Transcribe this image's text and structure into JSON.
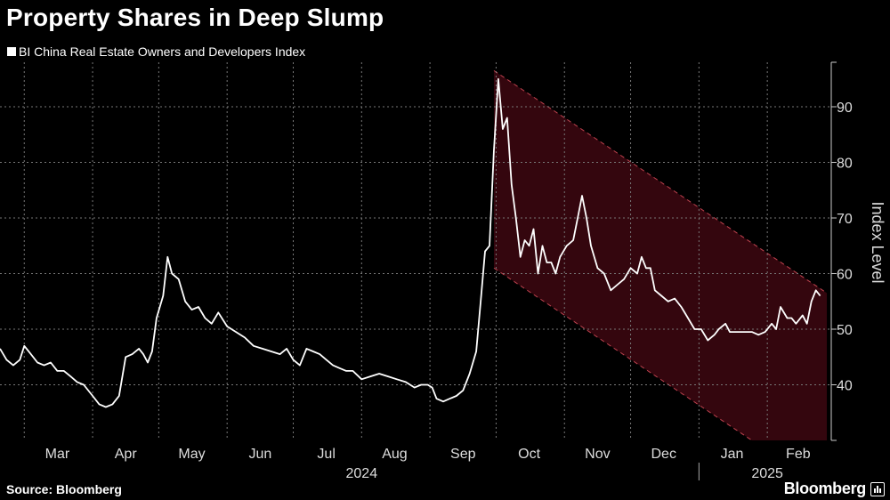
{
  "title": "Property Shares in Deep Slump",
  "legend": "BI China Real Estate Owners and Developers Index",
  "source": "Source: Bloomberg",
  "brand": "Bloomberg",
  "colors": {
    "background": "#000000",
    "line": "#ffffff",
    "channel_fill": "#3a0710",
    "channel_border": "#c0434f",
    "grid": "#777777"
  },
  "chart_data": {
    "type": "line",
    "title": "Property Shares in Deep Slump",
    "ylabel": "Index Level",
    "ylim": [
      30,
      98
    ],
    "yticks": [
      40,
      50,
      60,
      70,
      80,
      90
    ],
    "xlim": [
      "2024-02-19",
      "2025-03-02"
    ],
    "x_months": [
      {
        "label": "Mar",
        "date": "2024-03-01"
      },
      {
        "label": "Apr",
        "date": "2024-04-01"
      },
      {
        "label": "May",
        "date": "2024-05-01"
      },
      {
        "label": "Jun",
        "date": "2024-06-01"
      },
      {
        "label": "Jul",
        "date": "2024-07-01"
      },
      {
        "label": "Aug",
        "date": "2024-08-01"
      },
      {
        "label": "Sep",
        "date": "2024-09-01"
      },
      {
        "label": "Oct",
        "date": "2024-10-01"
      },
      {
        "label": "Nov",
        "date": "2024-11-01"
      },
      {
        "label": "Dec",
        "date": "2024-12-01"
      },
      {
        "label": "Jan",
        "date": "2025-01-01"
      },
      {
        "label": "Feb",
        "date": "2025-02-01"
      }
    ],
    "x_years": [
      {
        "label": "2024",
        "date": "2024-08-01"
      },
      {
        "label": "2025",
        "date": "2025-02-01"
      }
    ],
    "grid": true,
    "legend_position": "top-left",
    "series": [
      {
        "name": "BI China Real Estate Owners and Developers Index",
        "points": [
          [
            "2024-02-19",
            46.5
          ],
          [
            "2024-02-22",
            44.5
          ],
          [
            "2024-02-25",
            43.5
          ],
          [
            "2024-02-28",
            44.5
          ],
          [
            "2024-03-01",
            47.0
          ],
          [
            "2024-03-04",
            45.5
          ],
          [
            "2024-03-07",
            44.0
          ],
          [
            "2024-03-10",
            43.5
          ],
          [
            "2024-03-13",
            44.0
          ],
          [
            "2024-03-16",
            42.5
          ],
          [
            "2024-03-19",
            42.5
          ],
          [
            "2024-03-22",
            41.5
          ],
          [
            "2024-03-25",
            40.5
          ],
          [
            "2024-03-28",
            40.0
          ],
          [
            "2024-04-01",
            38.0
          ],
          [
            "2024-04-04",
            36.5
          ],
          [
            "2024-04-07",
            36.0
          ],
          [
            "2024-04-10",
            36.5
          ],
          [
            "2024-04-13",
            38.0
          ],
          [
            "2024-04-16",
            45.0
          ],
          [
            "2024-04-19",
            45.5
          ],
          [
            "2024-04-22",
            46.5
          ],
          [
            "2024-04-24",
            45.5
          ],
          [
            "2024-04-26",
            44.0
          ],
          [
            "2024-04-28",
            46.0
          ],
          [
            "2024-04-30",
            52.0
          ],
          [
            "2024-05-03",
            56.0
          ],
          [
            "2024-05-05",
            63.0
          ],
          [
            "2024-05-07",
            60.0
          ],
          [
            "2024-05-10",
            59.0
          ],
          [
            "2024-05-13",
            55.0
          ],
          [
            "2024-05-16",
            53.5
          ],
          [
            "2024-05-19",
            54.0
          ],
          [
            "2024-05-22",
            52.0
          ],
          [
            "2024-05-25",
            51.0
          ],
          [
            "2024-05-28",
            53.0
          ],
          [
            "2024-06-01",
            50.5
          ],
          [
            "2024-06-05",
            49.5
          ],
          [
            "2024-06-09",
            48.5
          ],
          [
            "2024-06-13",
            47.0
          ],
          [
            "2024-06-17",
            46.5
          ],
          [
            "2024-06-21",
            46.0
          ],
          [
            "2024-06-25",
            45.5
          ],
          [
            "2024-06-28",
            46.5
          ],
          [
            "2024-07-01",
            44.5
          ],
          [
            "2024-07-04",
            43.5
          ],
          [
            "2024-07-07",
            46.5
          ],
          [
            "2024-07-10",
            46.0
          ],
          [
            "2024-07-13",
            45.5
          ],
          [
            "2024-07-16",
            44.5
          ],
          [
            "2024-07-19",
            43.5
          ],
          [
            "2024-07-22",
            43.0
          ],
          [
            "2024-07-25",
            42.5
          ],
          [
            "2024-07-28",
            42.5
          ],
          [
            "2024-08-01",
            41.0
          ],
          [
            "2024-08-05",
            41.5
          ],
          [
            "2024-08-09",
            42.0
          ],
          [
            "2024-08-13",
            41.5
          ],
          [
            "2024-08-17",
            41.0
          ],
          [
            "2024-08-21",
            40.5
          ],
          [
            "2024-08-25",
            39.5
          ],
          [
            "2024-08-28",
            40.0
          ],
          [
            "2024-08-31",
            40.0
          ],
          [
            "2024-09-02",
            39.5
          ],
          [
            "2024-09-04",
            37.5
          ],
          [
            "2024-09-07",
            37.0
          ],
          [
            "2024-09-10",
            37.5
          ],
          [
            "2024-09-13",
            38.0
          ],
          [
            "2024-09-16",
            39.0
          ],
          [
            "2024-09-19",
            42.0
          ],
          [
            "2024-09-22",
            46.0
          ],
          [
            "2024-09-24",
            55.0
          ],
          [
            "2024-09-26",
            64.0
          ],
          [
            "2024-09-28",
            65.0
          ],
          [
            "2024-09-30",
            82.0
          ],
          [
            "2024-10-02",
            95.0
          ],
          [
            "2024-10-04",
            86.0
          ],
          [
            "2024-10-06",
            88.0
          ],
          [
            "2024-10-08",
            76.0
          ],
          [
            "2024-10-10",
            70.0
          ],
          [
            "2024-10-12",
            63.0
          ],
          [
            "2024-10-14",
            66.0
          ],
          [
            "2024-10-16",
            65.0
          ],
          [
            "2024-10-18",
            68.0
          ],
          [
            "2024-10-20",
            60.0
          ],
          [
            "2024-10-22",
            65.0
          ],
          [
            "2024-10-24",
            62.0
          ],
          [
            "2024-10-26",
            62.0
          ],
          [
            "2024-10-28",
            60.0
          ],
          [
            "2024-10-30",
            63.0
          ],
          [
            "2024-11-02",
            65.0
          ],
          [
            "2024-11-05",
            66.0
          ],
          [
            "2024-11-07",
            70.0
          ],
          [
            "2024-11-09",
            74.0
          ],
          [
            "2024-11-11",
            70.0
          ],
          [
            "2024-11-13",
            65.0
          ],
          [
            "2024-11-16",
            61.0
          ],
          [
            "2024-11-19",
            60.0
          ],
          [
            "2024-11-22",
            57.0
          ],
          [
            "2024-11-25",
            58.0
          ],
          [
            "2024-11-28",
            59.0
          ],
          [
            "2024-12-01",
            61.0
          ],
          [
            "2024-12-04",
            60.0
          ],
          [
            "2024-12-06",
            63.0
          ],
          [
            "2024-12-08",
            61.0
          ],
          [
            "2024-12-10",
            61.0
          ],
          [
            "2024-12-12",
            57.0
          ],
          [
            "2024-12-15",
            56.0
          ],
          [
            "2024-12-18",
            55.0
          ],
          [
            "2024-12-21",
            55.5
          ],
          [
            "2024-12-24",
            54.0
          ],
          [
            "2024-12-27",
            52.0
          ],
          [
            "2024-12-30",
            50.0
          ],
          [
            "2025-01-02",
            50.0
          ],
          [
            "2025-01-05",
            48.0
          ],
          [
            "2025-01-08",
            49.0
          ],
          [
            "2025-01-10",
            50.0
          ],
          [
            "2025-01-13",
            51.0
          ],
          [
            "2025-01-15",
            49.5
          ],
          [
            "2025-01-18",
            49.5
          ],
          [
            "2025-01-22",
            49.5
          ],
          [
            "2025-01-25",
            49.5
          ],
          [
            "2025-01-28",
            49.0
          ],
          [
            "2025-01-31",
            49.5
          ],
          [
            "2025-02-03",
            51.0
          ],
          [
            "2025-02-05",
            50.0
          ],
          [
            "2025-02-07",
            54.0
          ],
          [
            "2025-02-10",
            52.0
          ],
          [
            "2025-02-12",
            52.0
          ],
          [
            "2025-02-14",
            51.0
          ],
          [
            "2025-02-17",
            52.5
          ],
          [
            "2025-02-19",
            51.0
          ],
          [
            "2025-02-21",
            55.0
          ],
          [
            "2025-02-23",
            57.0
          ],
          [
            "2025-02-25",
            56.0
          ]
        ]
      }
    ],
    "channel": {
      "upper": [
        [
          "2024-09-30",
          96.5
        ],
        [
          "2025-02-28",
          56.5
        ]
      ],
      "lower": [
        [
          "2024-09-30",
          61.0
        ],
        [
          "2025-02-28",
          21.0
        ]
      ]
    }
  }
}
